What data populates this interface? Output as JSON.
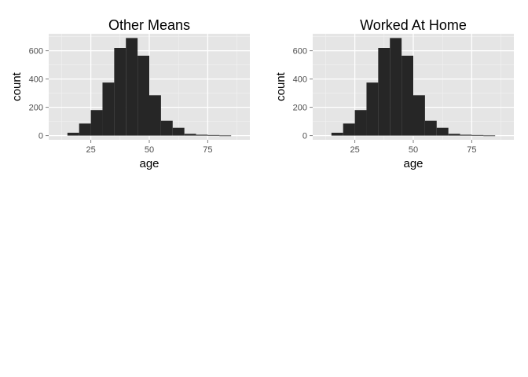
{
  "chart_data": [
    {
      "type": "bar",
      "title": "Other Means",
      "xlabel": "age",
      "ylabel": "count",
      "xlim": [
        7,
        93
      ],
      "ylim": [
        -30,
        720
      ],
      "xticks": [
        25,
        50,
        75
      ],
      "yticks": [
        0,
        200,
        400,
        600
      ],
      "grid": true,
      "bin_width": 5,
      "bin_starts": [
        15,
        20,
        25,
        30,
        35,
        40,
        45,
        50,
        55,
        60,
        65,
        70,
        75,
        80,
        85
      ],
      "values": [
        20,
        85,
        180,
        375,
        620,
        690,
        565,
        285,
        105,
        55,
        12,
        6,
        4,
        1,
        0
      ]
    },
    {
      "type": "bar",
      "title": "Worked At Home",
      "xlabel": "age",
      "ylabel": "count",
      "xlim": [
        7,
        93
      ],
      "ylim": [
        -30,
        720
      ],
      "xticks": [
        25,
        50,
        75
      ],
      "yticks": [
        0,
        200,
        400,
        600
      ],
      "grid": true,
      "bin_width": 5,
      "bin_starts": [
        15,
        20,
        25,
        30,
        35,
        40,
        45,
        50,
        55,
        60,
        65,
        70,
        75,
        80,
        85
      ],
      "values": [
        20,
        85,
        180,
        375,
        620,
        690,
        565,
        285,
        105,
        55,
        12,
        6,
        4,
        1,
        0
      ]
    }
  ],
  "colors": {
    "panel_background": "#e5e5e5",
    "grid_major": "#ffffff",
    "grid_minor": "#f2f2f2",
    "bar_fill": "#262626",
    "tick_text": "#4d4d4d"
  }
}
